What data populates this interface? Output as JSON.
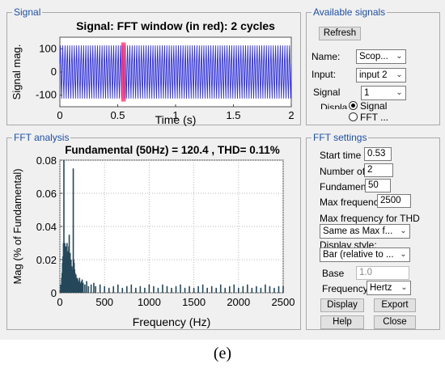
{
  "signal_panel": {
    "title": "Signal",
    "chart_data": {
      "type": "line",
      "title": "Signal: FFT window (in red): 2 cycles",
      "xlabel": "Time (s)",
      "ylabel": "Signal mag.",
      "xlim": [
        0,
        2
      ],
      "ylim": [
        -150,
        150
      ],
      "xticks": [
        "0",
        "0.5",
        "1",
        "1.5",
        "2"
      ],
      "yticks": [
        "100",
        "0",
        "-100"
      ],
      "series": [
        {
          "type": "sine",
          "frequency_hz": 50,
          "amplitude": 120,
          "color": "#2b2bd6"
        }
      ],
      "fft_window": {
        "start": 0.53,
        "end": 0.57,
        "color": "#ff2a6d"
      }
    }
  },
  "fft_panel": {
    "title": "FFT analysis",
    "chart_data": {
      "type": "bar",
      "title": "Fundamental (50Hz) = 120.4 , THD= 0.11%",
      "xlabel": "Frequency (Hz)",
      "ylabel": "Mag (% of Fundamental)",
      "xlim": [
        0,
        2500
      ],
      "ylim": [
        0,
        0.08
      ],
      "xticks": [
        "0",
        "500",
        "1000",
        "1500",
        "2000",
        "2500"
      ],
      "yticks": [
        "0.08",
        "0.06",
        "0.04",
        "0.02",
        "0"
      ],
      "bar_color": "#25485a",
      "x": [
        10,
        20,
        25,
        30,
        35,
        40,
        45,
        55,
        60,
        65,
        70,
        75,
        80,
        85,
        90,
        95,
        100,
        105,
        110,
        115,
        120,
        125,
        130,
        135,
        140,
        145,
        150,
        155,
        160,
        165,
        170,
        175,
        180,
        185,
        190,
        195,
        200,
        210,
        220,
        230,
        240,
        250,
        260,
        280,
        300,
        320,
        350,
        380,
        400,
        450,
        500,
        550,
        600,
        650,
        700,
        750,
        800,
        850,
        900,
        950,
        1000,
        1050,
        1100,
        1150,
        1200,
        1250,
        1300,
        1350,
        1400,
        1450,
        1500,
        1550,
        1600,
        1650,
        1700,
        1750,
        1800,
        1850,
        1900,
        1950,
        2000,
        2050,
        2100,
        2150,
        2200,
        2250,
        2300,
        2350,
        2400,
        2450,
        2500
      ],
      "values": [
        0.005,
        0.009,
        0.012,
        0.018,
        0.022,
        0.03,
        0.085,
        0.03,
        0.025,
        0.028,
        0.022,
        0.02,
        0.03,
        0.018,
        0.025,
        0.02,
        0.028,
        0.035,
        0.022,
        0.024,
        0.018,
        0.02,
        0.015,
        0.016,
        0.012,
        0.014,
        0.075,
        0.02,
        0.018,
        0.014,
        0.012,
        0.01,
        0.011,
        0.009,
        0.008,
        0.009,
        0.008,
        0.007,
        0.009,
        0.006,
        0.007,
        0.008,
        0.006,
        0.005,
        0.007,
        0.004,
        0.005,
        0.006,
        0.004,
        0.005,
        0.004,
        0.003,
        0.004,
        0.005,
        0.003,
        0.004,
        0.005,
        0.003,
        0.004,
        0.003,
        0.005,
        0.004,
        0.003,
        0.005,
        0.004,
        0.003,
        0.004,
        0.005,
        0.003,
        0.004,
        0.003,
        0.004,
        0.005,
        0.003,
        0.004,
        0.003,
        0.005,
        0.003,
        0.004,
        0.005,
        0.003,
        0.004,
        0.005,
        0.003,
        0.004,
        0.003,
        0.005,
        0.004,
        0.003,
        0.004,
        0.004
      ]
    }
  },
  "available_signals": {
    "title": "Available signals",
    "refresh_label": "Refresh",
    "name_label": "Name:",
    "name_value": "Scop...",
    "input_label": "Input:",
    "input_value": "input 2",
    "signal_label": "Signal",
    "signal_value": "1",
    "display_label": "Displa",
    "display_options": [
      "Signal",
      "FFT ..."
    ]
  },
  "fft_settings": {
    "title": "FFT settings",
    "start_time_label": "Start time",
    "start_time_value": "0.53",
    "num_cycles_label": "Number of",
    "num_cycles_value": "2",
    "fundamental_label": "Fundament",
    "fundamental_value": "50",
    "max_freq_label": "Max frequency",
    "max_freq_value": "2500",
    "max_freq_thd_label": "Max frequency for THD",
    "max_freq_thd_value": "Same as Max f...",
    "display_style_label": "Display style:",
    "display_style_value": "Bar (relative to ...",
    "base_label": "Base",
    "base_value": "1.0",
    "frequency_label": "Frequency",
    "frequency_value": "Hertz",
    "display_button": "Display",
    "export_button": "Export",
    "help_button": "Help",
    "close_button": "Close"
  },
  "caption": "(e)"
}
